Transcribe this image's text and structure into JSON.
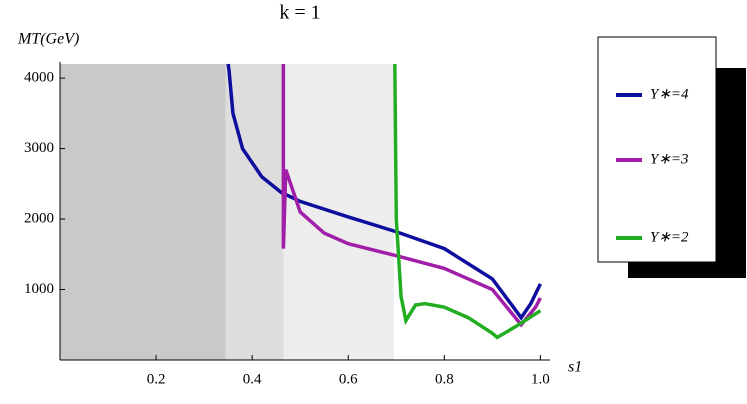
{
  "chart_data": {
    "type": "line",
    "title": "k = 1",
    "y_label": "MT(GeV)",
    "x_label": "s1",
    "xlim": [
      0,
      1.02
    ],
    "ylim": [
      0,
      4200
    ],
    "xticks": [
      0.2,
      0.4,
      0.6,
      0.8,
      {
        "value": 1,
        "label": "1.0"
      }
    ],
    "yticks": [
      1000,
      2000,
      3000,
      4000
    ],
    "regions": [
      {
        "x0": 0,
        "x1": 0.345,
        "color": "#c9c9c9"
      },
      {
        "x0": 0.345,
        "x1": 0.465,
        "color": "#dddddd"
      },
      {
        "x0": 0.465,
        "x1": 0.695,
        "color": "#ededed"
      }
    ],
    "series": [
      {
        "name": "Y∗=4",
        "color": "#0e0e9e",
        "x": [
          0.35,
          0.352,
          0.36,
          0.38,
          0.42,
          0.46,
          0.5,
          0.6,
          0.7,
          0.8,
          0.9,
          0.96,
          0.98,
          1.0
        ],
        "values": [
          4200,
          4100,
          3500,
          3000,
          2600,
          2380,
          2250,
          2030,
          1820,
          1580,
          1150,
          600,
          800,
          1080
        ]
      },
      {
        "name": "Y∗=3",
        "color": "#a01ea8",
        "x": [
          0.465,
          0.465,
          0.47,
          0.48,
          0.5,
          0.55,
          0.6,
          0.7,
          0.8,
          0.9,
          0.96,
          0.99,
          1.0
        ],
        "values": [
          4200,
          1580,
          2700,
          2500,
          2100,
          1800,
          1650,
          1480,
          1300,
          1000,
          500,
          750,
          880
        ]
      },
      {
        "name": "Y∗=2",
        "color": "#22ad22",
        "x": [
          0.697,
          0.7,
          0.71,
          0.72,
          0.74,
          0.76,
          0.8,
          0.85,
          0.9,
          0.91,
          0.95,
          1.0
        ],
        "values": [
          4200,
          2000,
          900,
          560,
          780,
          800,
          750,
          600,
          380,
          320,
          480,
          700
        ]
      }
    ]
  }
}
